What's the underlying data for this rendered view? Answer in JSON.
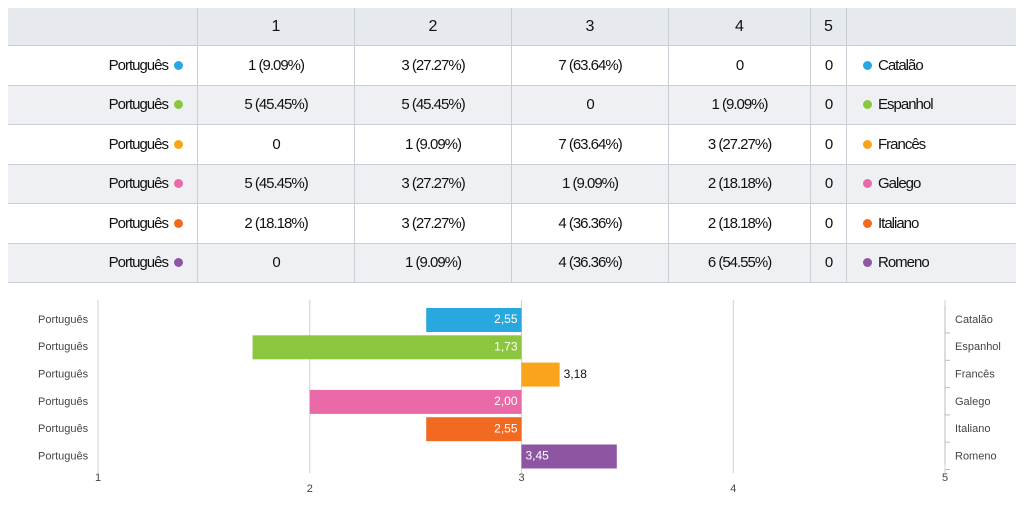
{
  "table": {
    "header": [
      "",
      "1",
      "2",
      "3",
      "4",
      "5",
      ""
    ],
    "rows": [
      {
        "label": "Português",
        "color": "#29a8e0",
        "cells": [
          "1 (9.09%)",
          "3 (27.27%)",
          "7 (63.64%)",
          "0",
          "0"
        ],
        "name": "Catalão"
      },
      {
        "label": "Português",
        "color": "#8cc63f",
        "cells": [
          "5 (45.45%)",
          "5 (45.45%)",
          "0",
          "1 (9.09%)",
          "0"
        ],
        "name": "Espanhol"
      },
      {
        "label": "Português",
        "color": "#f8a51b",
        "cells": [
          "0",
          "1 (9.09%)",
          "7 (63.64%)",
          "3 (27.27%)",
          "0"
        ],
        "name": "Francês"
      },
      {
        "label": "Português",
        "color": "#ea6aa8",
        "cells": [
          "5 (45.45%)",
          "3 (27.27%)",
          "1 (9.09%)",
          "2 (18.18%)",
          "0"
        ],
        "name": "Galego"
      },
      {
        "label": "Português",
        "color": "#f26a22",
        "cells": [
          "2 (18.18%)",
          "3 (27.27%)",
          "4 (36.36%)",
          "2 (18.18%)",
          "0"
        ],
        "name": "Italiano"
      },
      {
        "label": "Português",
        "color": "#8e55a3",
        "cells": [
          "0",
          "1 (9.09%)",
          "4 (36.36%)",
          "6 (54.55%)",
          "0"
        ],
        "name": "Romeno"
      }
    ]
  },
  "chart_data": {
    "type": "bar",
    "orientation": "horizontal",
    "row_labels": [
      "Português",
      "Português",
      "Português",
      "Português",
      "Português",
      "Português"
    ],
    "categories": [
      "Catalão",
      "Espanhol",
      "Francês",
      "Galego",
      "Italiano",
      "Romeno"
    ],
    "values": [
      2.55,
      1.73,
      3.18,
      2.0,
      2.55,
      3.45
    ],
    "value_labels": [
      "2,55",
      "1,73",
      "3,18",
      "2,00",
      "2,55",
      "3,45"
    ],
    "colors": [
      "#29a8e0",
      "#8cc63f",
      "#f8a51b",
      "#ea6aa8",
      "#f26a22",
      "#8e55a3"
    ],
    "xlim": [
      1,
      5
    ],
    "xticks": [
      1,
      2,
      3,
      4,
      5
    ]
  }
}
